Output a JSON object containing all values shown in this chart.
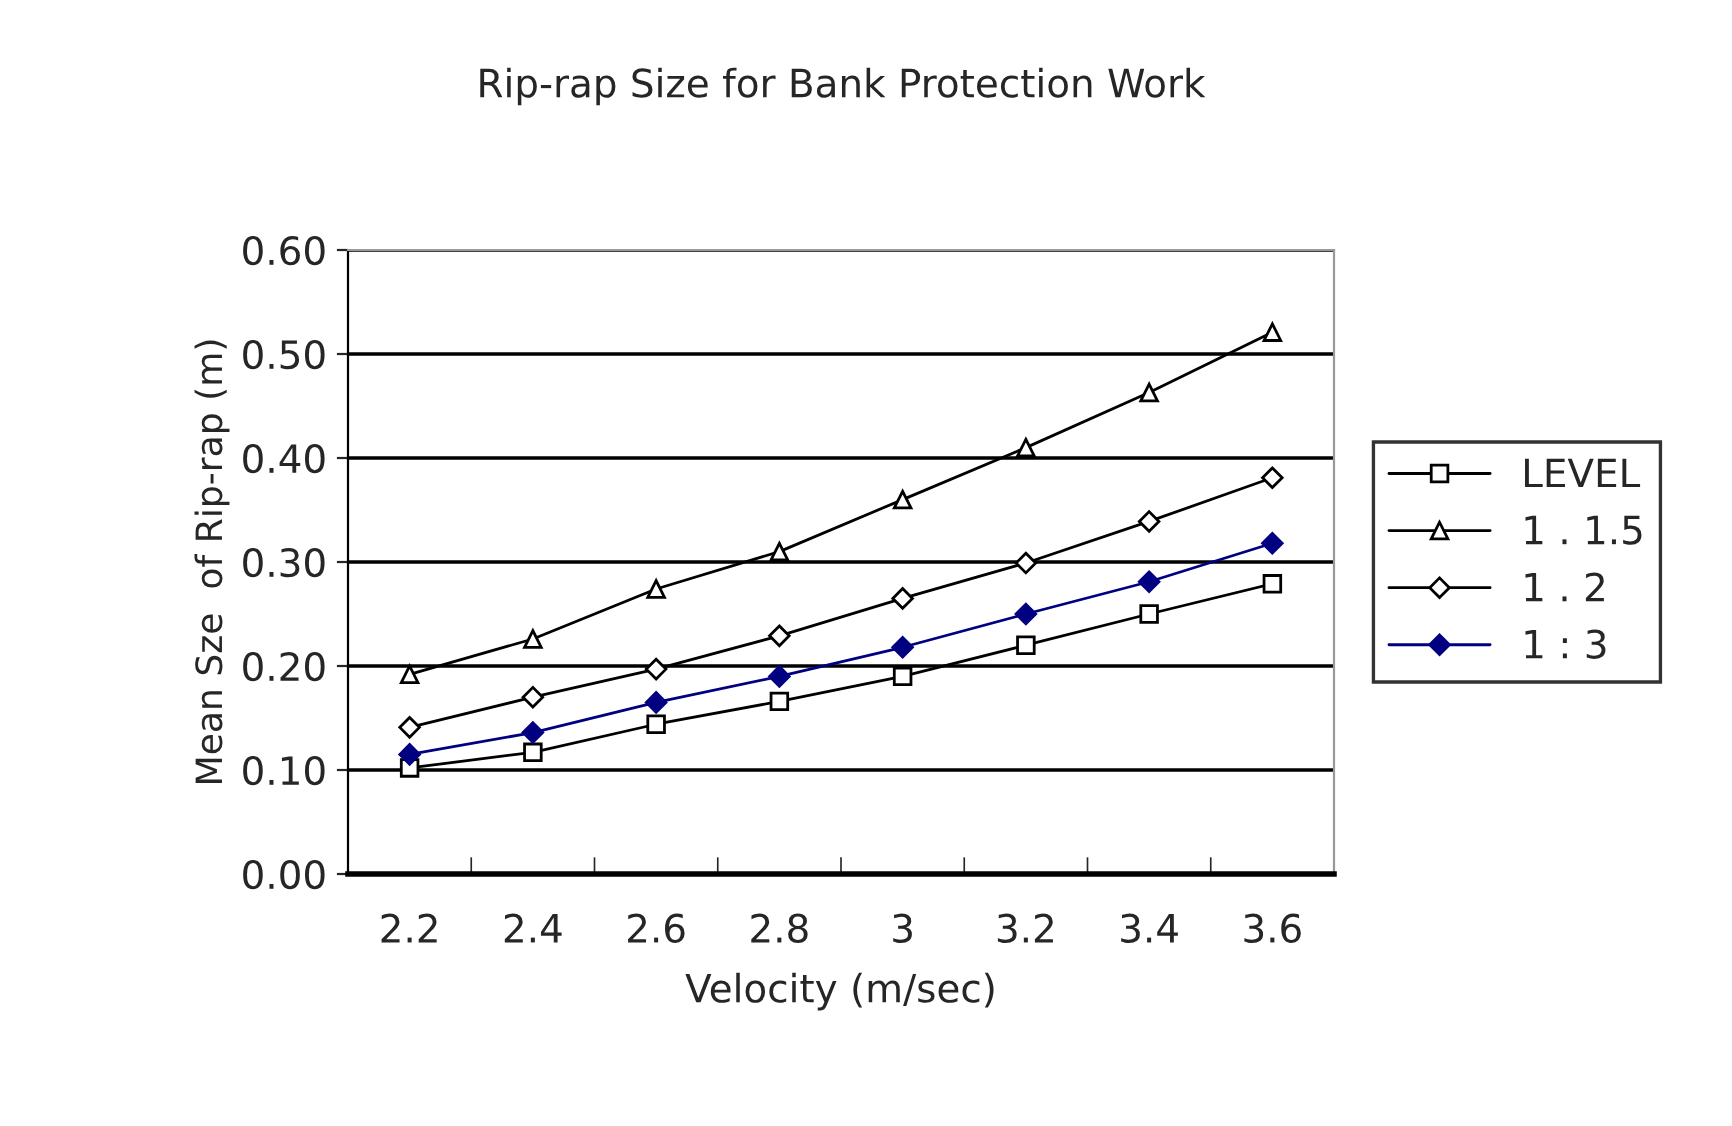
{
  "chart_data": {
    "type": "line",
    "title": "Rip-rap Size for Bank Protection Work",
    "xlabel": "Velocity (m/sec)",
    "ylabel": "Mean Sze  of Rip-rap (m)",
    "categories": [
      "2.2",
      "2.4",
      "2.6",
      "2.8",
      "3",
      "3.2",
      "3.4",
      "3.6"
    ],
    "ylim": [
      0,
      0.6
    ],
    "yticks": [
      {
        "value": 0,
        "label": "0.00"
      },
      {
        "value": 0.1,
        "label": "0.10"
      },
      {
        "value": 0.2,
        "label": "0.20"
      },
      {
        "value": 0.3,
        "label": "0.30"
      },
      {
        "value": 0.4,
        "label": "0.40"
      },
      {
        "value": 0.5,
        "label": "0.50"
      },
      {
        "value": 0.6,
        "label": "0.60"
      }
    ],
    "grid": "y",
    "legend": "right",
    "line_style": "solid",
    "series": [
      {
        "name": "LEVEL",
        "color": "#000000",
        "marker": "square",
        "values": [
          0.102,
          0.117,
          0.144,
          0.166,
          0.19,
          0.22,
          0.25,
          0.279
        ]
      },
      {
        "name": "1 . 1.5",
        "color": "#000000",
        "marker": "triangle",
        "values": [
          0.192,
          0.226,
          0.274,
          0.31,
          0.36,
          0.41,
          0.463,
          0.521
        ]
      },
      {
        "name": "1 . 2",
        "color": "#000000",
        "marker": "diamond",
        "values": [
          0.141,
          0.17,
          0.197,
          0.229,
          0.265,
          0.299,
          0.339,
          0.381
        ]
      },
      {
        "name": "1 : 3",
        "color": "#000080",
        "marker": "diamond",
        "values": [
          0.115,
          0.136,
          0.165,
          0.19,
          0.218,
          0.25,
          0.281,
          0.318
        ]
      }
    ]
  }
}
